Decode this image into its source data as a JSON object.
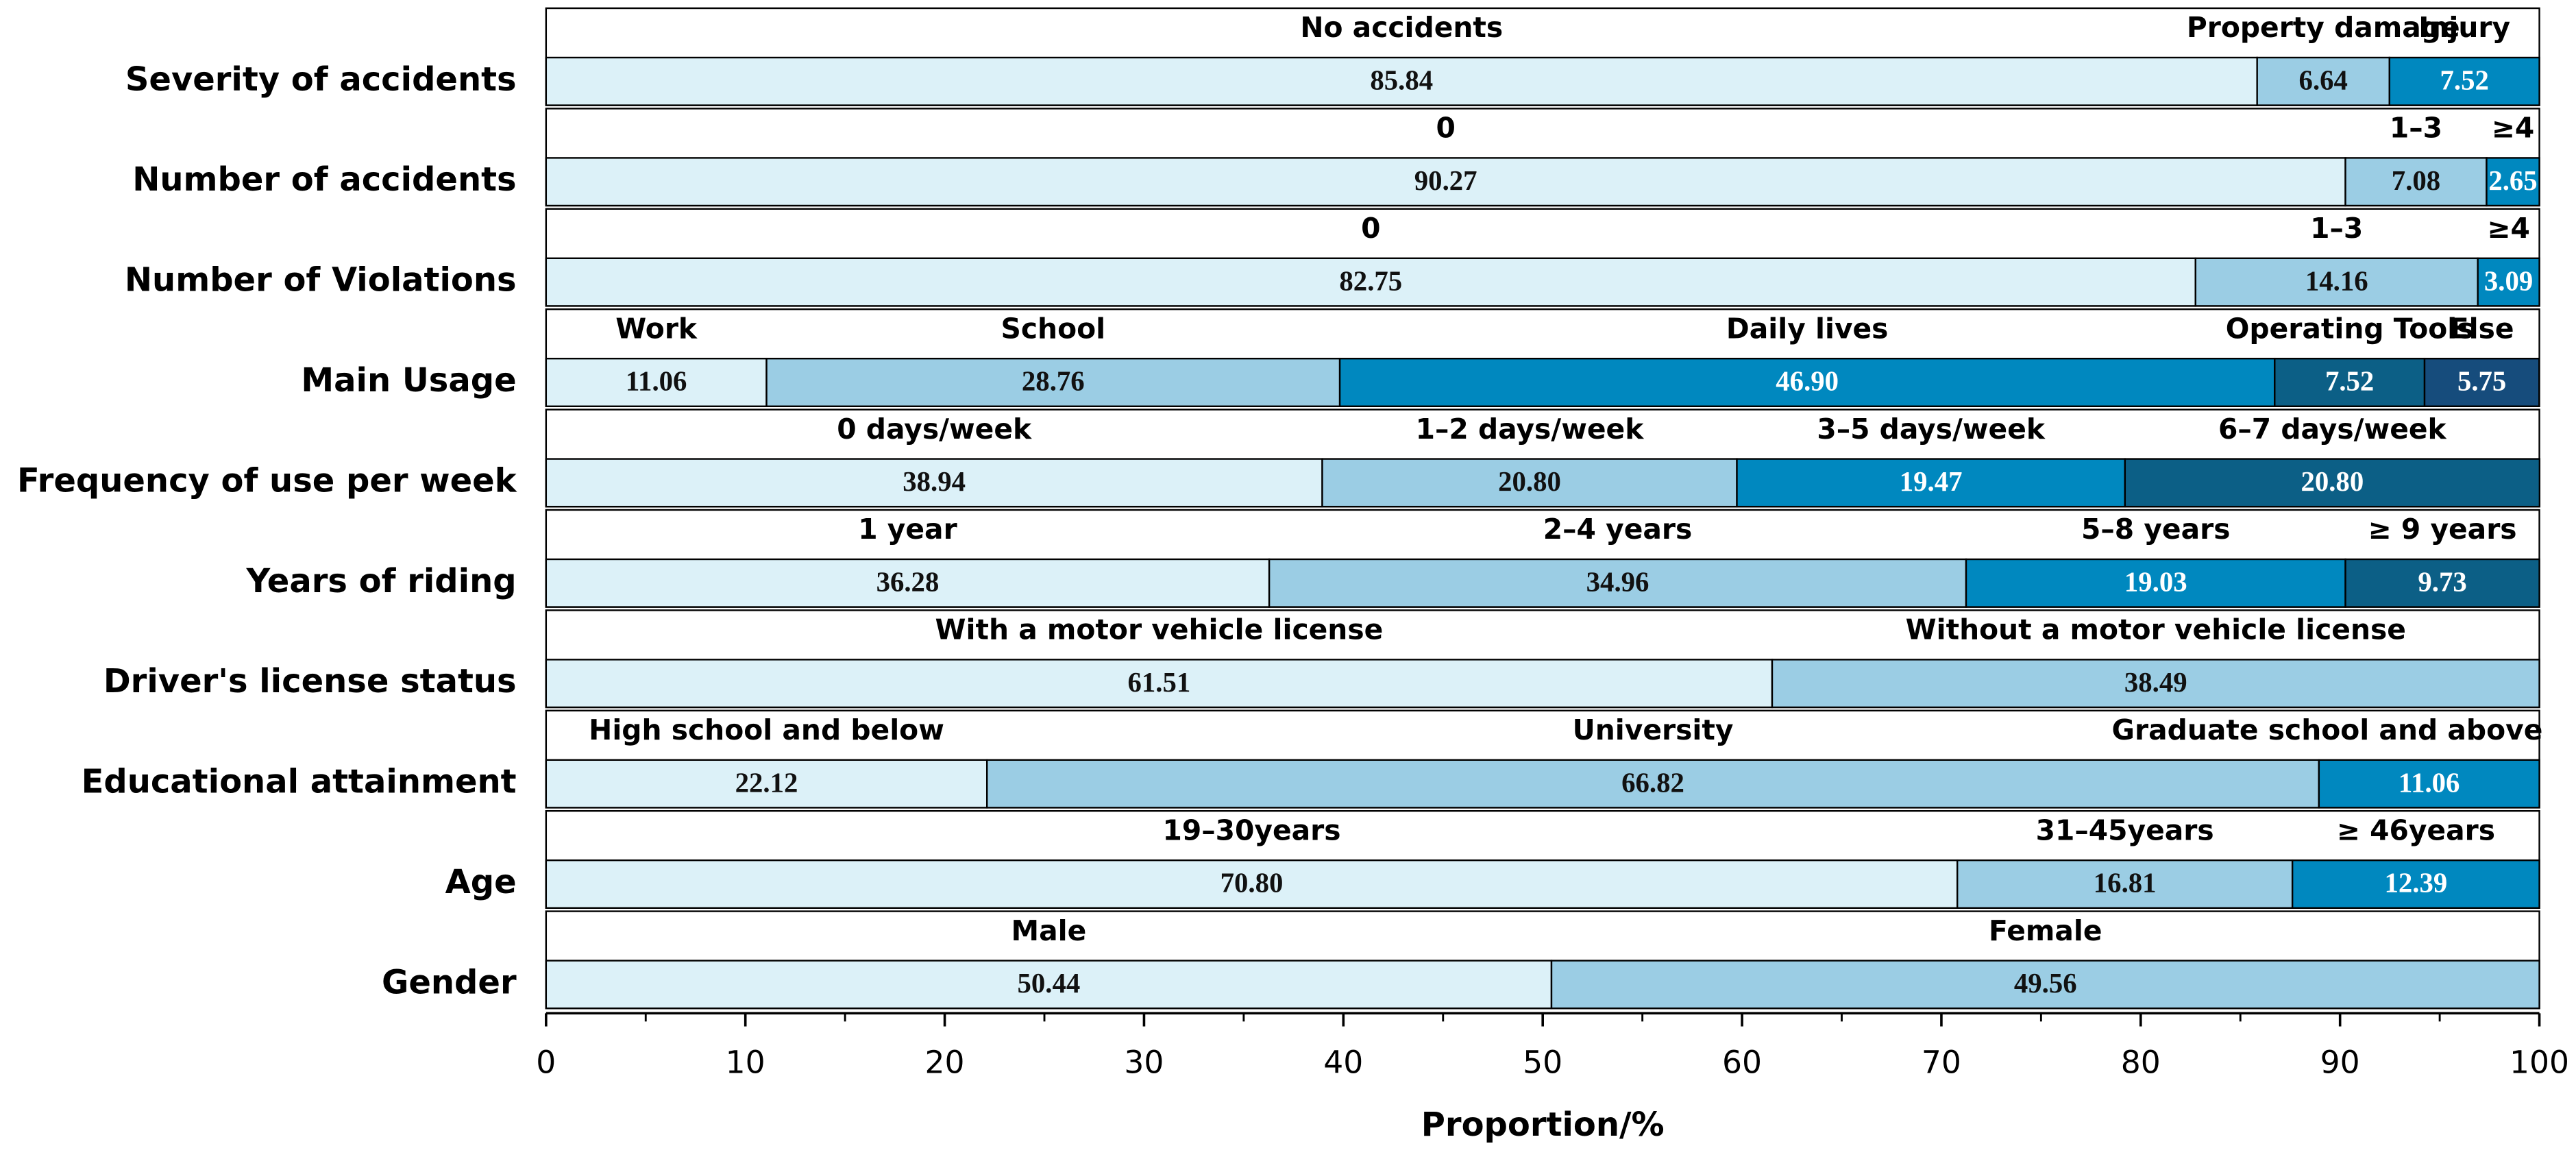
{
  "chart_data": {
    "type": "bar",
    "x_label": "Proportion/%",
    "xlim": [
      0,
      100
    ],
    "xticks": [
      0,
      10,
      20,
      30,
      40,
      50,
      60,
      70,
      80,
      90,
      100
    ],
    "xminorticks": [
      5,
      15,
      25,
      35,
      45,
      55,
      65,
      75,
      85,
      95
    ],
    "colors": [
      "#dcf1f8",
      "#9bcde4",
      "#0088bf",
      "#0c5f86",
      "#164c7c"
    ],
    "rows": [
      {
        "name": "Severity of accidents",
        "categories": [
          "No accidents",
          "Property damage",
          "Injury"
        ],
        "values": [
          85.84,
          6.64,
          7.52
        ],
        "value_labels": [
          "85.84",
          "6.64",
          "7.52"
        ]
      },
      {
        "name": "Number of accidents",
        "categories": [
          "0",
          "1–3",
          "≥4"
        ],
        "values": [
          90.27,
          7.08,
          2.65
        ],
        "value_labels": [
          "90.27",
          "7.08",
          "2.65"
        ]
      },
      {
        "name": "Number of Violations",
        "categories": [
          "0",
          "1–3",
          "≥4"
        ],
        "values": [
          82.75,
          14.16,
          3.09
        ],
        "value_labels": [
          "82.75",
          "14.16",
          "3.09"
        ]
      },
      {
        "name": "Main Usage",
        "categories": [
          "Work",
          "School",
          "Daily lives",
          "Operating Tools",
          "Else"
        ],
        "values": [
          11.06,
          28.76,
          46.9,
          7.52,
          5.75
        ],
        "value_labels": [
          "11.06",
          "28.76",
          "46.90",
          "7.52",
          "5.75"
        ]
      },
      {
        "name": "Frequency of use per week",
        "categories": [
          "0 days/week",
          "1–2 days/week",
          "3–5 days/week",
          "6–7 days/week"
        ],
        "values": [
          38.94,
          20.8,
          19.47,
          20.8
        ],
        "value_labels": [
          "38.94",
          "20.80",
          "19.47",
          "20.80"
        ]
      },
      {
        "name": "Years of riding",
        "categories": [
          "1 year",
          "2–4 years",
          "5–8 years",
          "≥ 9 years"
        ],
        "values": [
          36.28,
          34.96,
          19.03,
          9.73
        ],
        "value_labels": [
          "36.28",
          "34.96",
          "19.03",
          "9.73"
        ]
      },
      {
        "name": "Driver's license status",
        "categories": [
          "With a motor vehicle license",
          "Without a motor vehicle license"
        ],
        "values": [
          61.51,
          38.49
        ],
        "value_labels": [
          "61.51",
          "38.49"
        ]
      },
      {
        "name": "Educational attainment",
        "categories": [
          "High school and below",
          "University",
          "Graduate school and above"
        ],
        "values": [
          22.12,
          66.82,
          11.06
        ],
        "value_labels": [
          "22.12",
          "66.82",
          "11.06"
        ]
      },
      {
        "name": "Age",
        "categories": [
          "19–30years",
          "31–45years",
          "≥ 46years"
        ],
        "values": [
          70.8,
          16.81,
          12.39
        ],
        "value_labels": [
          "70.80",
          "16.81",
          "12.39"
        ]
      },
      {
        "name": "Gender",
        "categories": [
          "Male",
          "Female"
        ],
        "values": [
          50.44,
          49.56
        ],
        "value_labels": [
          "50.44",
          "49.56"
        ]
      }
    ]
  }
}
